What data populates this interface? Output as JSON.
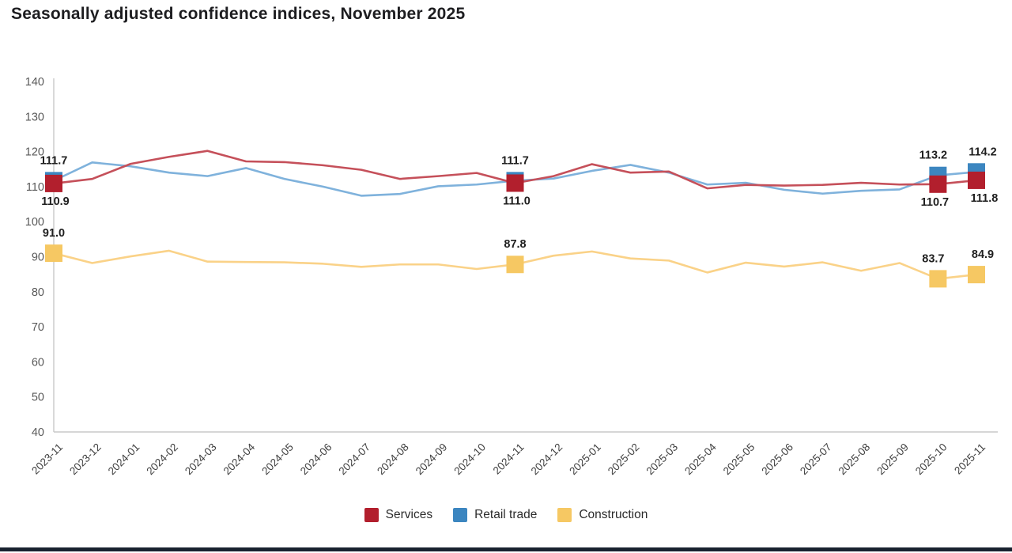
{
  "title": "Seasonally adjusted confidence indices, November 2025",
  "colors": {
    "axis": "#c9c9c9",
    "title_text": "#1d1d20",
    "bottom_bar": "#18222f"
  },
  "chart_data": {
    "type": "line",
    "title": "Seasonally adjusted confidence indices, November 2025",
    "xlabel": "",
    "ylabel": "",
    "ylim": [
      40,
      140
    ],
    "ytick_step": 10,
    "ytick_labels": [
      "140",
      "130",
      "120",
      "110",
      "100",
      "90",
      "80",
      "70",
      "60",
      "50",
      "40"
    ],
    "grid": false,
    "legend_position": "bottom",
    "categories": [
      "2023-11",
      "2023-12",
      "2024-01",
      "2024-02",
      "2024-03",
      "2024-04",
      "2024-05",
      "2024-06",
      "2024-07",
      "2024-08",
      "2024-09",
      "2024-10",
      "2024-11",
      "2024-12",
      "2025-01",
      "2025-02",
      "2025-03",
      "2025-04",
      "2025-05",
      "2025-06",
      "2025-07",
      "2025-08",
      "2025-09",
      "2025-10",
      "2025-11"
    ],
    "highlighted_indices": [
      0,
      12,
      23,
      24
    ],
    "series": [
      {
        "name": "Services",
        "color": "#b21f2d",
        "line_color": "#c5505a",
        "label_position": "below",
        "values": [
          110.9,
          112.2,
          116.5,
          118.5,
          120.2,
          117.2,
          117.0,
          116.1,
          114.8,
          112.2,
          113.0,
          113.9,
          111.0,
          113.0,
          116.4,
          114.0,
          114.3,
          109.5,
          110.5,
          110.3,
          110.5,
          111.1,
          110.6,
          110.7,
          111.8
        ],
        "labels": {
          "0": "110.9",
          "12": "111.0",
          "23": "110.7",
          "24": "111.8"
        }
      },
      {
        "name": "Retail trade",
        "color": "#3c86c0",
        "line_color": "#7fb2dc",
        "label_position": "above",
        "values": [
          111.7,
          116.9,
          115.8,
          114.0,
          113.0,
          115.3,
          112.2,
          110.0,
          107.4,
          107.9,
          110.1,
          110.6,
          111.7,
          112.3,
          114.5,
          116.2,
          114.0,
          110.6,
          111.1,
          109.1,
          108.0,
          108.8,
          109.2,
          113.2,
          114.2
        ],
        "labels": {
          "0": "111.7",
          "12": "111.7",
          "23": "113.2",
          "24": "114.2"
        }
      },
      {
        "name": "Construction",
        "color": "#f6c863",
        "line_color": "#fad288",
        "label_position": "above",
        "values": [
          91.0,
          88.2,
          90.1,
          91.7,
          88.6,
          88.5,
          88.4,
          88.0,
          87.1,
          87.8,
          87.8,
          86.5,
          87.8,
          90.3,
          91.5,
          89.5,
          88.9,
          85.5,
          88.3,
          87.2,
          88.4,
          86.0,
          88.2,
          83.7,
          84.9
        ],
        "labels": {
          "0": "91.0",
          "12": "87.8",
          "23": "83.7",
          "24": "84.9"
        }
      }
    ]
  }
}
